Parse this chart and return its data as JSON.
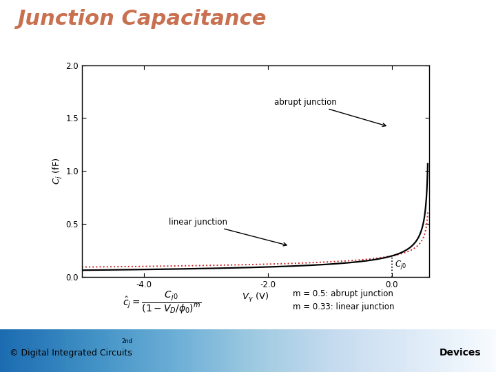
{
  "title": "Junction Capacitance",
  "title_color": "#C87050",
  "title_fontsize": 22,
  "xlabel": "Vγ (V)",
  "ylabel": "Cj (fF)",
  "xlim": [
    -5.0,
    0.6
  ],
  "ylim": [
    0.0,
    2.0
  ],
  "xticks": [
    -4.0,
    -2.0,
    0.0
  ],
  "yticks": [
    0.0,
    0.5,
    1.0,
    1.5,
    2.0
  ],
  "phi0": 0.6,
  "Cj0": 0.2,
  "m_abrupt": 0.5,
  "m_linear": 0.333,
  "vmin": -5.0,
  "vmax": 0.579,
  "abrupt_label": "abrupt junction",
  "linear_label": "linear junction",
  "Cj0_label": "Cj0",
  "abrupt_color": "#000000",
  "linear_color": "#CC2222",
  "bg_color": "#ffffff",
  "plot_bg": "#ffffff",
  "footer_bg_left": "#8090c0",
  "footer_bg_right": "#ffffff",
  "footer_text_left": "© Digital Integrated Circuits",
  "footer_sup": "2nd",
  "footer_text_right": "Devices",
  "note_fontsize": 9
}
